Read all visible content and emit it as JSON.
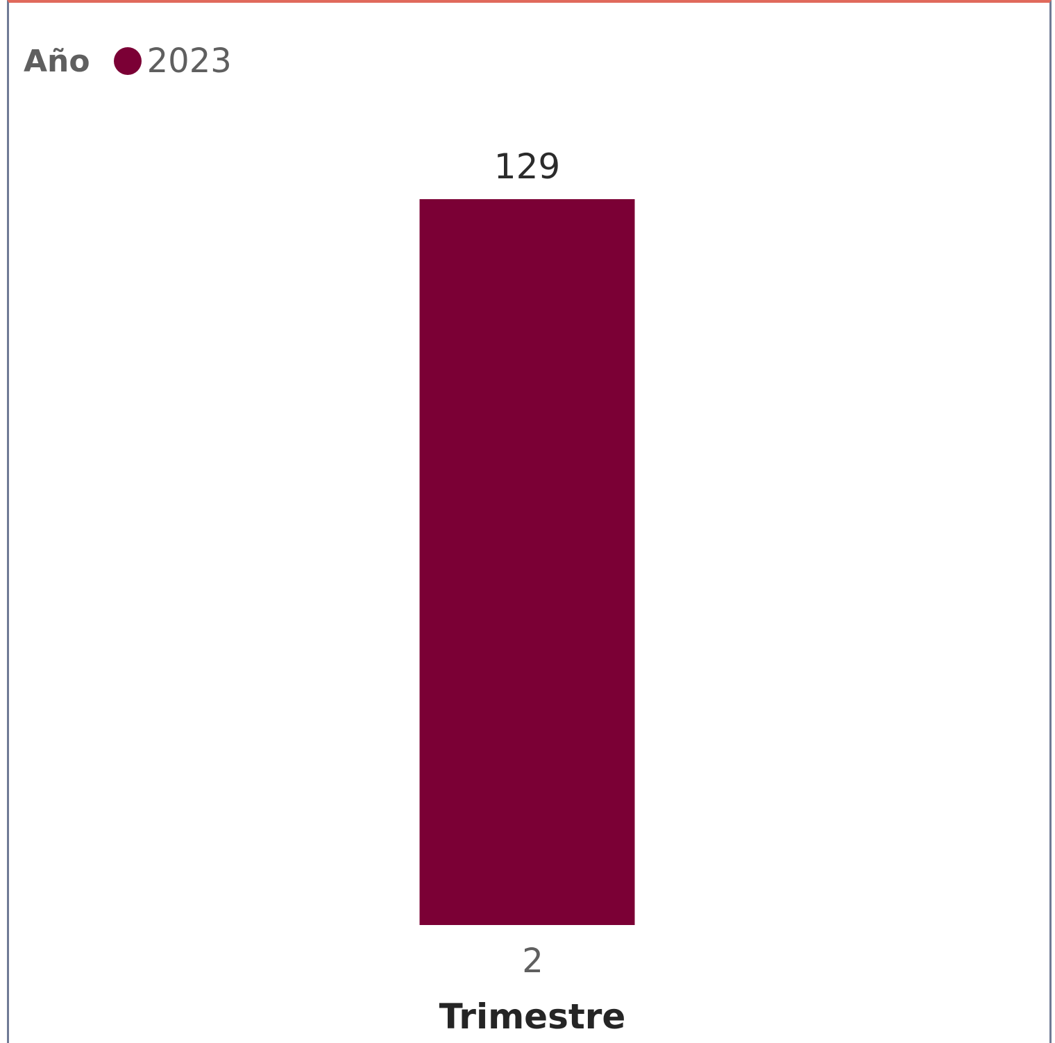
{
  "chart_data": {
    "type": "bar",
    "legend": {
      "title": "Año",
      "position": "top-left"
    },
    "categories": [
      "2"
    ],
    "series": [
      {
        "name": "2023",
        "values": [
          129
        ],
        "color": "#7b0035"
      }
    ],
    "data_labels": [
      "129"
    ],
    "xlabel": "Trimestre",
    "ylabel": "",
    "ylim": [
      0,
      129
    ],
    "grid": false
  }
}
